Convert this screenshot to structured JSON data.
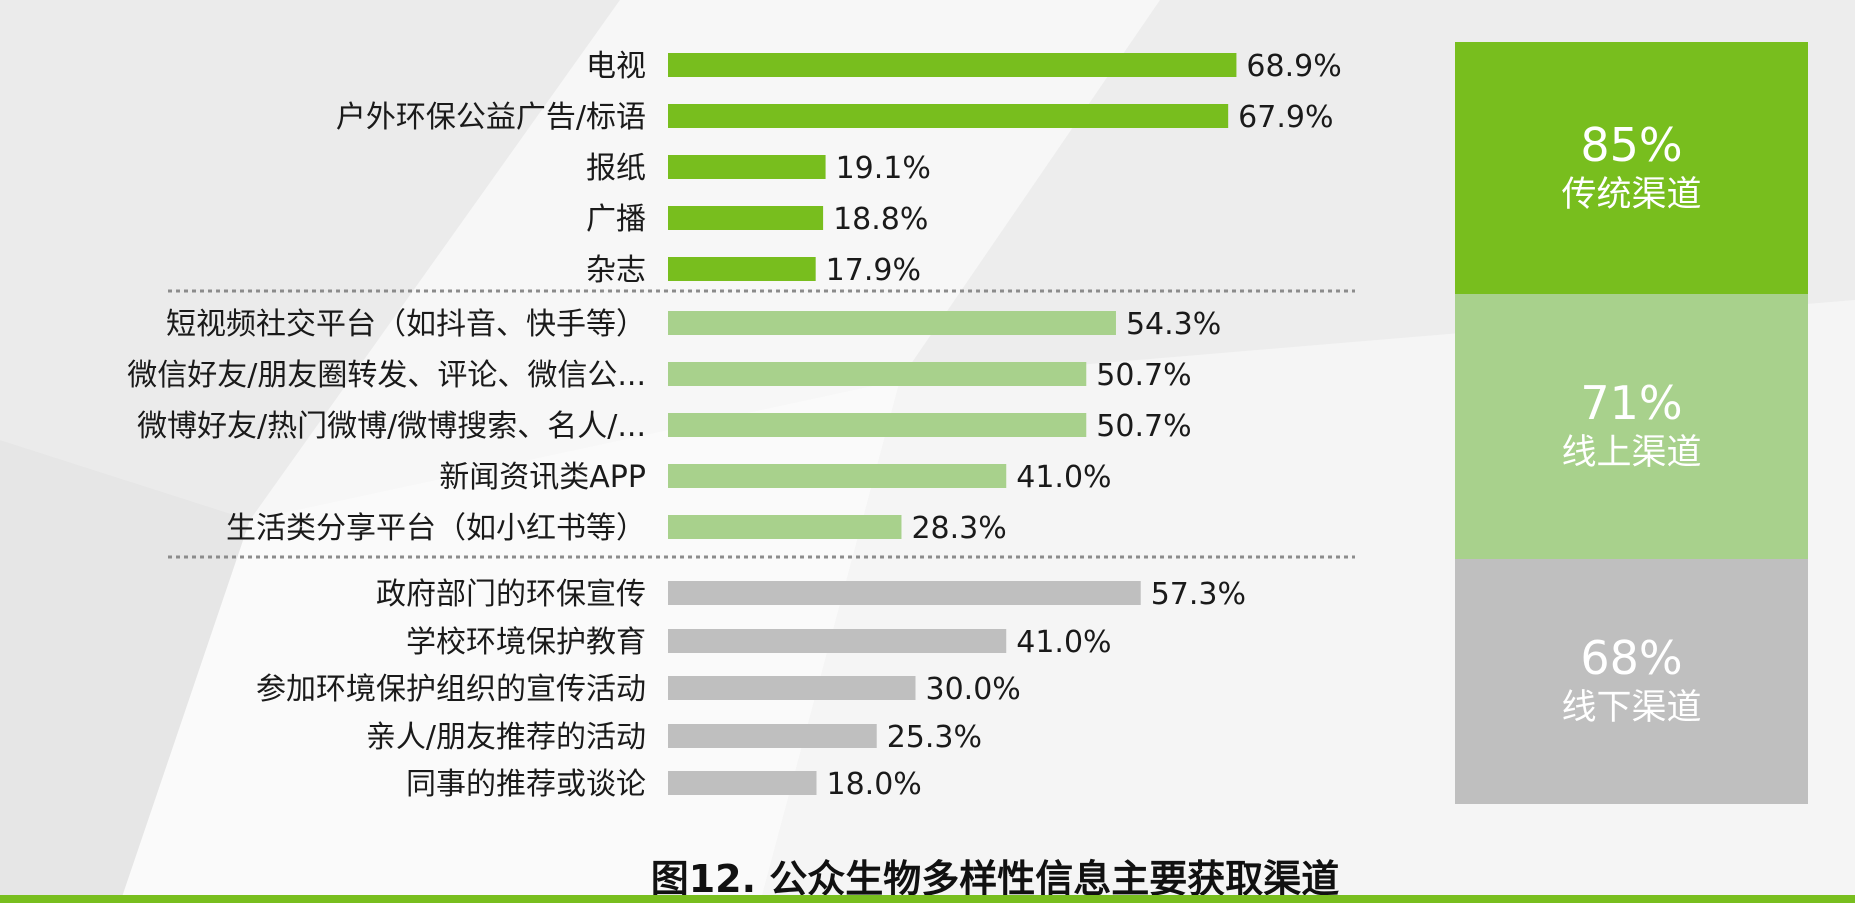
{
  "chart_data": {
    "type": "bar",
    "orientation": "horizontal",
    "title": "图12. 公众生物多样性信息主要获取渠道",
    "xlim": [
      0,
      100
    ],
    "groups": [
      {
        "name": "传统渠道",
        "share_label": "85%",
        "color": "#78be1e",
        "categories": [
          "电视",
          "户外环保公益广告/标语",
          "报纸",
          "广播",
          "杂志"
        ],
        "values": [
          68.9,
          67.9,
          19.1,
          18.8,
          17.9
        ],
        "value_labels": [
          "68.9%",
          "67.9%",
          "19.1%",
          "18.8%",
          "17.9%"
        ]
      },
      {
        "name": "线上渠道",
        "share_label": "71%",
        "color": "#a8d18c",
        "categories": [
          "短视频社交平台（如抖音、快手等）",
          "微信好友/朋友圈转发、评论、微信公...",
          "微博好友/热门微博/微博搜索、名人/...",
          "新闻资讯类APP",
          "生活类分享平台（如小红书等）"
        ],
        "values": [
          54.3,
          50.7,
          50.7,
          41.0,
          28.3
        ],
        "value_labels": [
          "54.3%",
          "50.7%",
          "50.7%",
          "41.0%",
          "28.3%"
        ]
      },
      {
        "name": "线下渠道",
        "share_label": "68%",
        "color": "#bfbfbf",
        "categories": [
          "政府部门的环保宣传",
          "学校环境保护教育",
          "参加环境保护组织的宣传活动",
          "亲人/朋友推荐的活动",
          "同事的推荐或谈论"
        ],
        "values": [
          57.3,
          41.0,
          30.0,
          25.3,
          18.0
        ],
        "value_labels": [
          "57.3%",
          "41.0%",
          "30.0%",
          "25.3%",
          "18.0%"
        ]
      }
    ]
  },
  "colors": {
    "background": "#f2f2f2",
    "accent_green": "#78be1e",
    "light_green": "#a8d18c",
    "gray": "#bfbfbf",
    "bottom_line": "#78be1e"
  }
}
